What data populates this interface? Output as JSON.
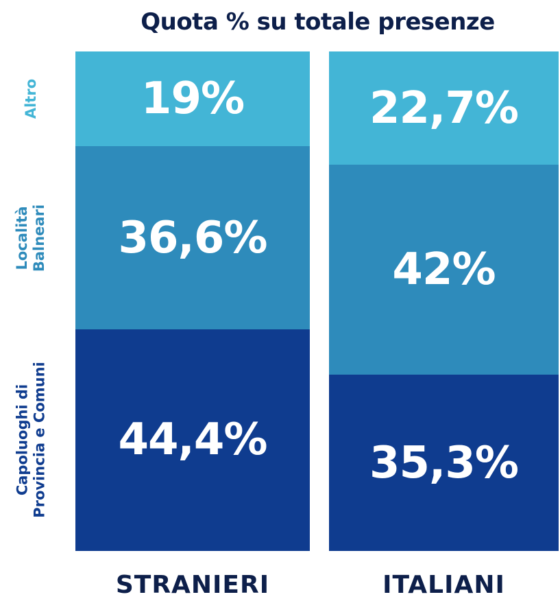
{
  "chart_data": {
    "type": "stacked-bar-100",
    "title": "Quota % su totale presenze",
    "categories": [
      "STRANIERI",
      "ITALIANI"
    ],
    "series": [
      {
        "name": "Capoluoghi di Provincia e Comuni",
        "color": "#0f3c8f",
        "values": [
          44.4,
          35.3
        ],
        "value_labels": [
          "44,4%",
          "35,3%"
        ]
      },
      {
        "name": "Località Balneari",
        "color": "#2e8bbb",
        "values": [
          36.6,
          42
        ],
        "value_labels": [
          "36,6%",
          "42%"
        ]
      },
      {
        "name": "Altro",
        "color": "#43b5d6",
        "values": [
          19,
          22.7
        ],
        "value_labels": [
          "19%",
          "22,7%"
        ]
      }
    ]
  }
}
